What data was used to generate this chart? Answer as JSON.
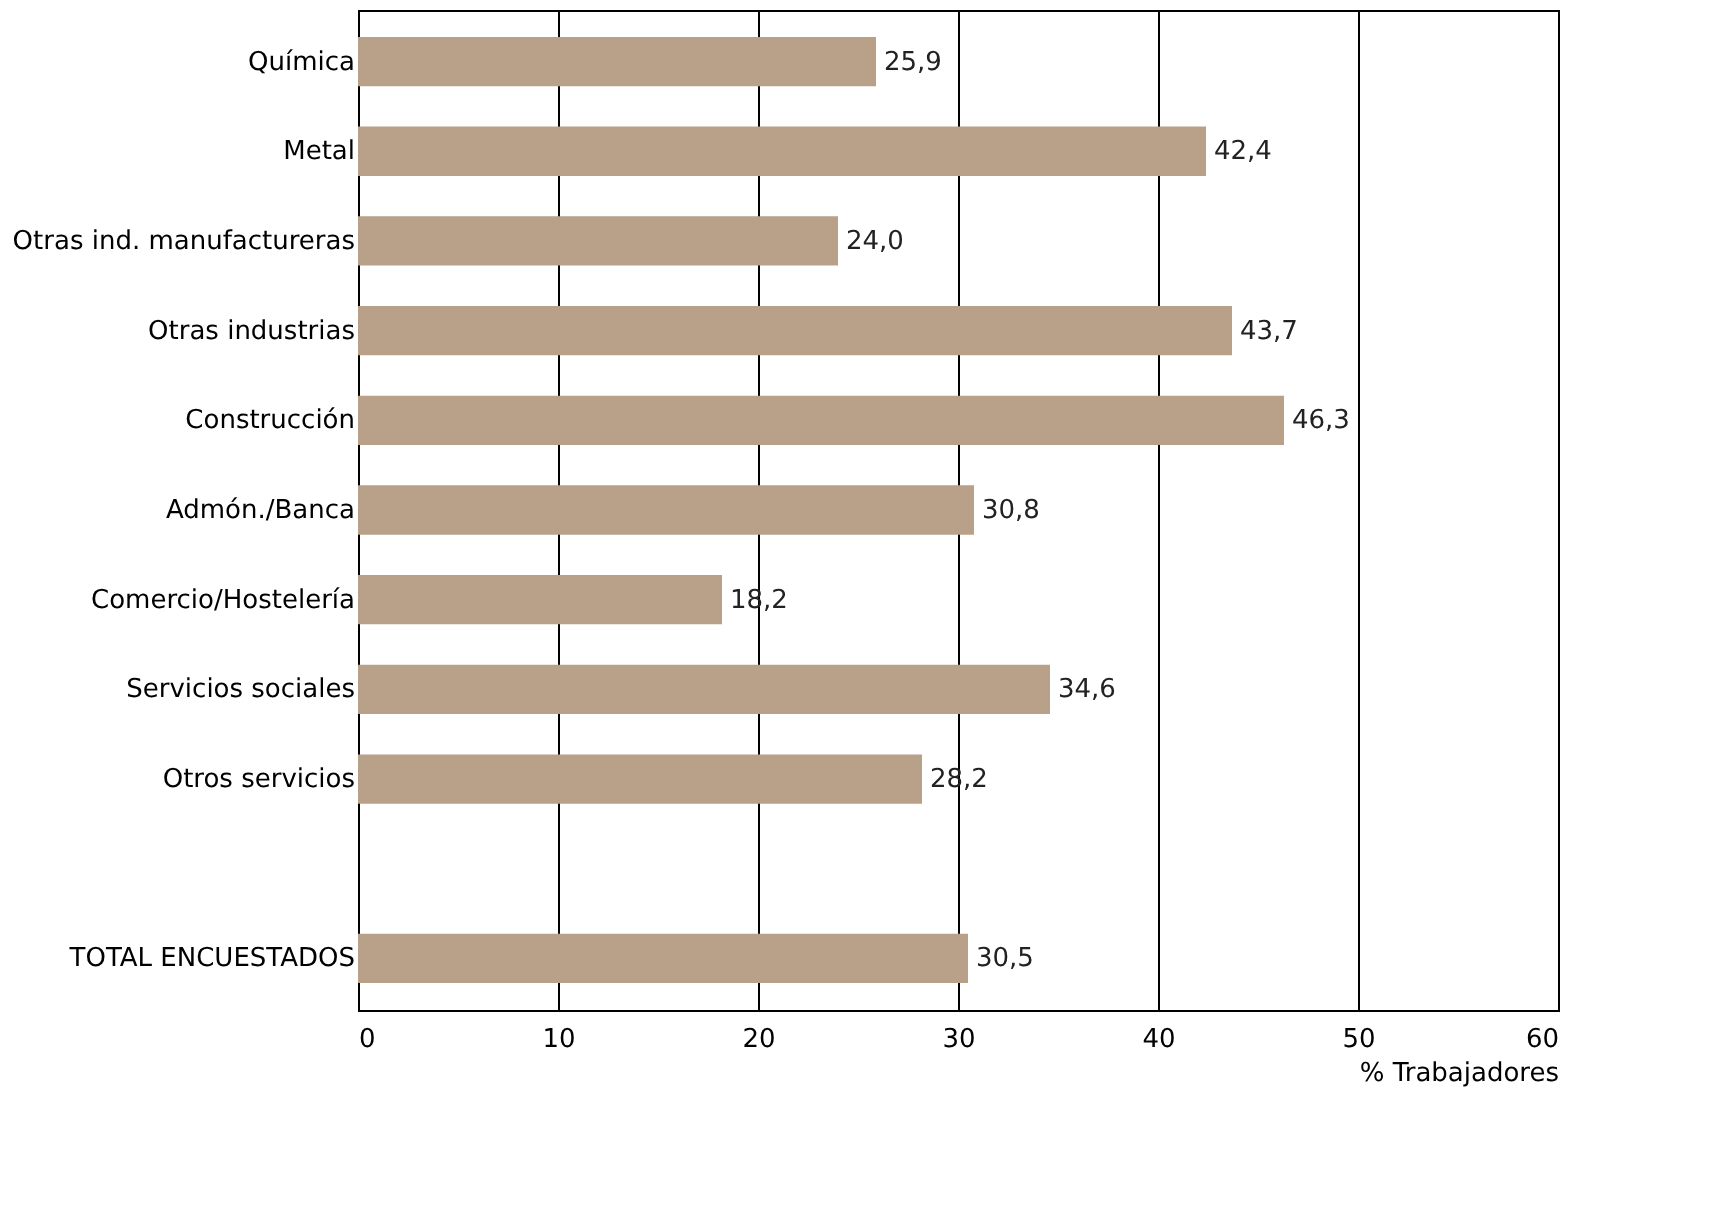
{
  "chart_data": {
    "type": "bar",
    "orientation": "horizontal",
    "xlabel": "% Trabajadores",
    "categories": [
      "Química",
      "Metal",
      "Otras ind. manufactureras",
      "Otras industrias",
      "Construcción",
      "Admón./Banca",
      "Comercio/Hostelería",
      "Servicios sociales",
      "Otros servicios",
      null,
      "TOTAL ENCUESTADOS"
    ],
    "values": [
      25.9,
      42.4,
      24.0,
      43.7,
      46.3,
      30.8,
      18.2,
      34.6,
      28.2,
      null,
      30.5
    ],
    "value_labels": [
      "25,9",
      "42,4",
      "24,0",
      "43,7",
      "46,3",
      "30,8",
      "18,2",
      "34,6",
      "28,2",
      null,
      "30,5"
    ],
    "color": "#b9a089",
    "xlim": [
      0,
      60
    ],
    "xticks": [
      0,
      10,
      20,
      30,
      40,
      50,
      60
    ],
    "grid": "x"
  }
}
